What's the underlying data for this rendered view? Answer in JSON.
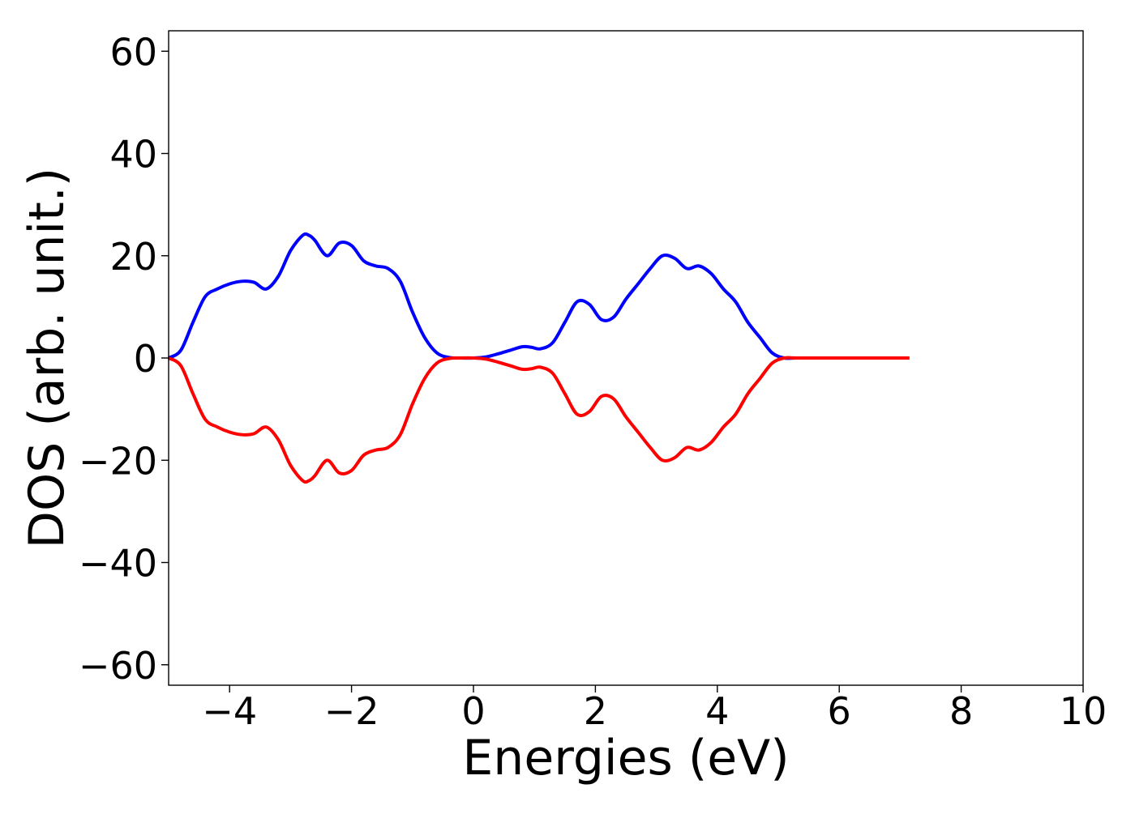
{
  "chart_data": {
    "type": "line",
    "title": "",
    "xlabel": "Energies (eV)",
    "ylabel": "DOS (arb. unit.)",
    "xlim": [
      -5,
      10
    ],
    "ylim": [
      -64,
      64
    ],
    "x_ticks": [
      -4,
      -2,
      0,
      2,
      4,
      6,
      8,
      10
    ],
    "y_ticks": [
      -60,
      -40,
      -20,
      0,
      20,
      40,
      60
    ],
    "x_tick_labels": [
      "−4",
      "−2",
      "0",
      "2",
      "4",
      "6",
      "8",
      "10"
    ],
    "y_tick_labels": [
      "−60",
      "−40",
      "−20",
      "0",
      "20",
      "40",
      "60"
    ],
    "grid": false,
    "legend": "none",
    "series": [
      {
        "color": "#0000ff",
        "x": [
          -5.0,
          -4.8,
          -4.6,
          -4.4,
          -4.2,
          -4.0,
          -3.8,
          -3.6,
          -3.4,
          -3.2,
          -3.0,
          -2.8,
          -2.7,
          -2.6,
          -2.4,
          -2.2,
          -2.0,
          -1.8,
          -1.6,
          -1.4,
          -1.2,
          -1.0,
          -0.8,
          -0.6,
          -0.4,
          -0.2,
          0.0,
          0.2,
          0.4,
          0.6,
          0.8,
          0.95,
          1.1,
          1.3,
          1.5,
          1.7,
          1.9,
          2.1,
          2.3,
          2.5,
          2.7,
          2.9,
          3.1,
          3.3,
          3.5,
          3.7,
          3.9,
          4.1,
          4.3,
          4.5,
          4.7,
          4.9,
          5.1,
          5.3,
          6.0,
          7.0,
          7.15
        ],
        "y": [
          0,
          1.5,
          7,
          12,
          13.5,
          14.5,
          15,
          14.8,
          13.5,
          16,
          21,
          24,
          24,
          23,
          20,
          22.5,
          22,
          19,
          18,
          17.5,
          15,
          9,
          4,
          1,
          0.1,
          0,
          0,
          0.2,
          0.8,
          1.5,
          2.2,
          2.1,
          1.8,
          3,
          7,
          11,
          10.5,
          7.5,
          8,
          11.5,
          14.5,
          17.5,
          20,
          19.5,
          17.5,
          18,
          16.5,
          13.5,
          11,
          7,
          4,
          1,
          0,
          0,
          0,
          0,
          0
        ]
      },
      {
        "color": "#ff0000",
        "x": [
          -5.0,
          -4.8,
          -4.6,
          -4.4,
          -4.2,
          -4.0,
          -3.8,
          -3.6,
          -3.4,
          -3.2,
          -3.0,
          -2.8,
          -2.7,
          -2.6,
          -2.4,
          -2.2,
          -2.0,
          -1.8,
          -1.6,
          -1.4,
          -1.2,
          -1.0,
          -0.8,
          -0.6,
          -0.4,
          -0.2,
          0.0,
          0.2,
          0.4,
          0.6,
          0.8,
          0.95,
          1.1,
          1.3,
          1.5,
          1.7,
          1.9,
          2.1,
          2.3,
          2.5,
          2.7,
          2.9,
          3.1,
          3.3,
          3.5,
          3.7,
          3.9,
          4.1,
          4.3,
          4.5,
          4.7,
          4.9,
          5.1,
          5.3,
          6.0,
          7.0,
          7.15
        ],
        "y": [
          0,
          -1.5,
          -7,
          -12,
          -13.5,
          -14.5,
          -15,
          -14.8,
          -13.5,
          -16,
          -21,
          -24,
          -24,
          -23,
          -20,
          -22.5,
          -22,
          -19,
          -18,
          -17.5,
          -15,
          -9,
          -4,
          -1,
          -0.1,
          0,
          0,
          -0.2,
          -0.8,
          -1.5,
          -2.2,
          -2.1,
          -1.8,
          -3,
          -7,
          -11,
          -10.5,
          -7.5,
          -8,
          -11.5,
          -14.5,
          -17.5,
          -20,
          -19.5,
          -17.5,
          -18,
          -16.5,
          -13.5,
          -11,
          -7,
          -4,
          -1,
          0,
          0,
          0,
          0,
          0
        ]
      }
    ]
  }
}
